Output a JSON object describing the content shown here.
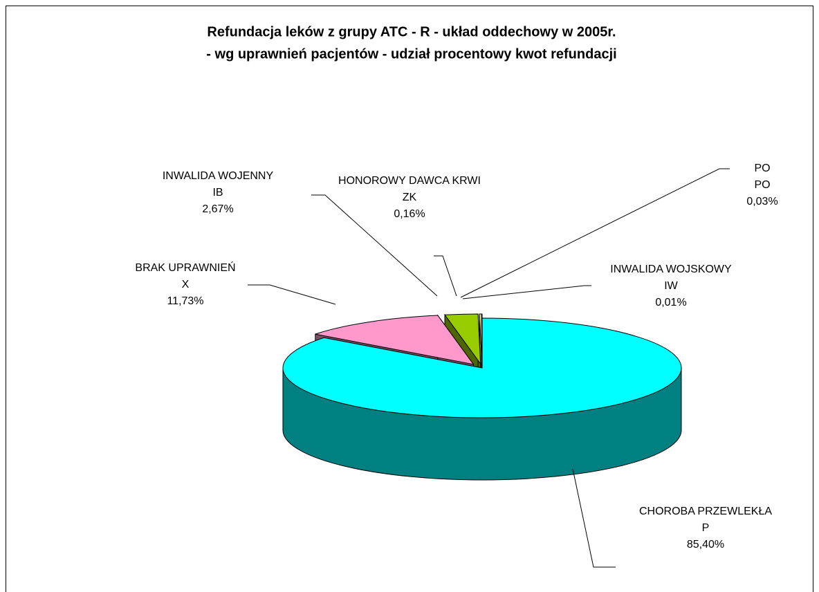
{
  "chart_data": {
    "type": "pie3d",
    "title": [
      "Refundacja leków z grupy ATC - R - układ oddechowy w 2005r.",
      "- wg uprawnień pacjentów - udział procentowy kwot refundacji"
    ],
    "categories": [
      "CHOROBA PRZEWLEKŁA",
      "BRAK UPRAWNIEŃ",
      "INWALIDA WOJENNY",
      "HONOROWY DAWCA KRWI",
      "PO",
      "INWALIDA WOJSKOWY"
    ],
    "codes": [
      "P",
      "X",
      "IB",
      "ZK",
      "PO",
      "IW"
    ],
    "values": [
      85.4,
      11.73,
      2.67,
      0.16,
      0.03,
      0.01
    ],
    "value_labels": [
      "85,40%",
      "11,73%",
      "2,67%",
      "0,16%",
      "0,03%",
      "0,01%"
    ],
    "colors": [
      "#00ffff",
      "#ff99cc",
      "#99cc00",
      "#ffff99",
      "#ffffff",
      "#000080"
    ]
  }
}
